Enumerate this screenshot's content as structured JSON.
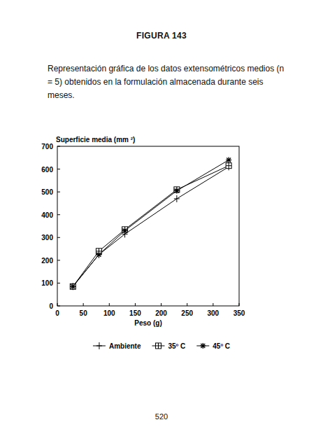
{
  "page": {
    "header": "FIGURA 143",
    "caption": "Representación gráfica de los datos extensométricos medios (n = 5) obtenidos en la formulación almacenada durante seis meses.",
    "number": "520"
  },
  "chart_data": {
    "type": "line",
    "y_label": "Superficie media (mm ²)",
    "x_label": "Peso (g)",
    "x": [
      30,
      80,
      130,
      230,
      330
    ],
    "series": [
      {
        "name": "Ambiente",
        "color": "#000000",
        "marker": "plus",
        "values": [
          85,
          225,
          315,
          470,
          610
        ]
      },
      {
        "name": "35º C",
        "color": "#000000",
        "marker": "square",
        "values": [
          85,
          240,
          335,
          510,
          615
        ]
      },
      {
        "name": "45º C",
        "color": "#000000",
        "marker": "asterisk",
        "values": [
          85,
          225,
          330,
          505,
          640
        ]
      }
    ],
    "xlim": [
      0,
      350
    ],
    "xticks": [
      0,
      50,
      100,
      150,
      200,
      250,
      300,
      350
    ],
    "ylim": [
      0,
      700
    ],
    "yticks": [
      0,
      100,
      200,
      300,
      400,
      500,
      600,
      700
    ],
    "grid": false,
    "legend": "bottom"
  }
}
